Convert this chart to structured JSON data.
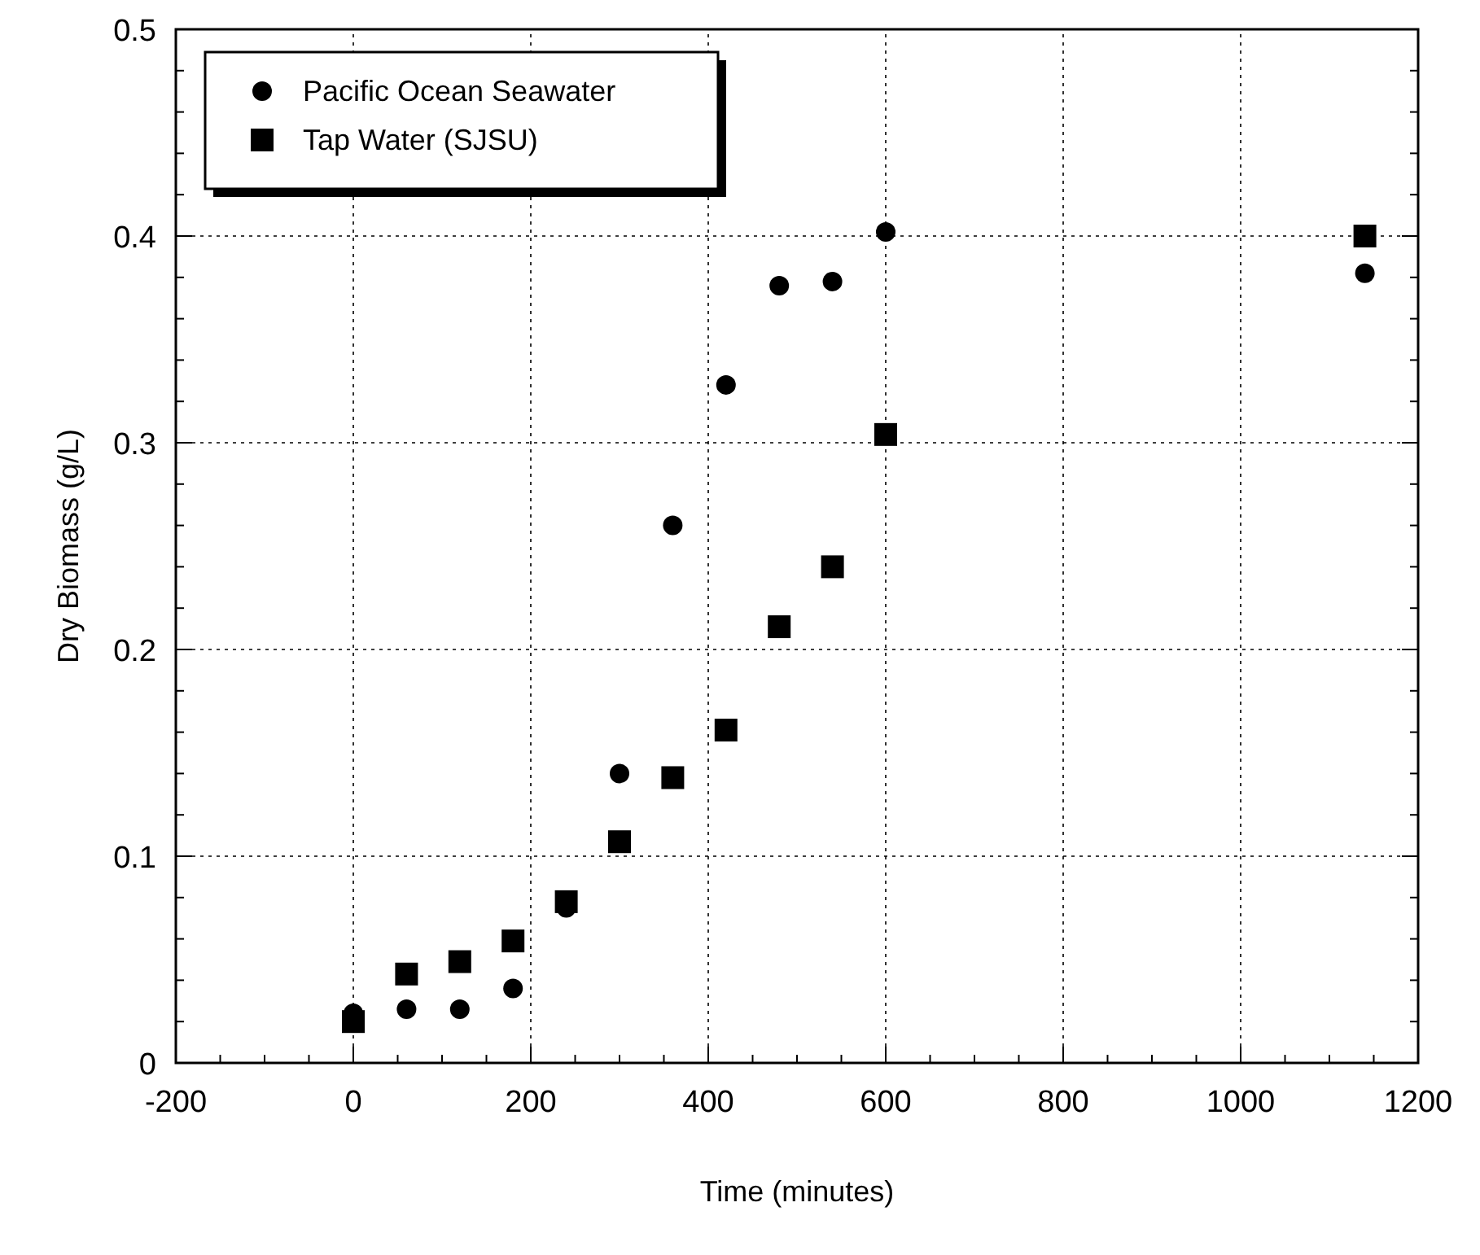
{
  "chart_data": {
    "type": "scatter",
    "xlabel": "Time (minutes)",
    "ylabel": "Dry Biomass (g/L)",
    "xlim": [
      -200,
      1200
    ],
    "xticks": [
      -200,
      0,
      200,
      400,
      600,
      800,
      1000,
      1200
    ],
    "ylim": [
      0,
      0.5
    ],
    "yticks": [
      0,
      0.1,
      0.2,
      0.3,
      0.4,
      0.5
    ],
    "grid": true,
    "legend": "top left",
    "series": [
      {
        "name": "Pacific Ocean Seawater",
        "color": "#000000",
        "marker": "circle",
        "x": [
          0,
          60,
          120,
          180,
          240,
          300,
          360,
          420,
          480,
          540,
          600,
          1140
        ],
        "values": [
          0.024,
          0.026,
          0.026,
          0.036,
          0.075,
          0.14,
          0.26,
          0.328,
          0.376,
          0.378,
          0.402,
          0.382
        ]
      },
      {
        "name": "Tap Water (SJSU)",
        "color": "#000000",
        "marker": "square",
        "x": [
          0,
          60,
          120,
          180,
          240,
          300,
          360,
          420,
          480,
          540,
          600,
          1140
        ],
        "values": [
          0.02,
          0.043,
          0.049,
          0.059,
          0.078,
          0.107,
          0.138,
          0.161,
          0.211,
          0.24,
          0.304,
          0.4
        ]
      }
    ]
  }
}
